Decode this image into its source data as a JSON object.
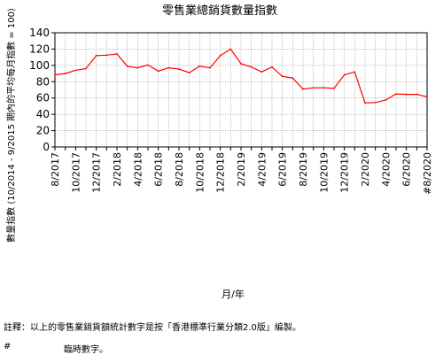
{
  "chart_data": {
    "type": "line",
    "title": "零售業總銷貨數量指數",
    "ylabel": "數量指數 (10/2014 - 9/2015 期內的平均每月指數 = 100)",
    "xlabel": "月/年",
    "ylim": [
      0,
      140
    ],
    "yticks": [
      0,
      20,
      40,
      60,
      80,
      100,
      120,
      140
    ],
    "grid": true,
    "line_color": "#ff0000",
    "x": [
      "8/2017",
      "9/2017",
      "10/2017",
      "11/2017",
      "12/2017",
      "1/2018",
      "2/2018",
      "3/2018",
      "4/2018",
      "5/2018",
      "6/2018",
      "7/2018",
      "8/2018",
      "9/2018",
      "10/2018",
      "11/2018",
      "12/2018",
      "1/2019",
      "2/2019",
      "3/2019",
      "4/2019",
      "5/2019",
      "6/2019",
      "7/2019",
      "8/2019",
      "9/2019",
      "10/2019",
      "11/2019",
      "12/2019",
      "1/2020",
      "2/2020",
      "3/2020",
      "4/2020",
      "5/2020",
      "6/2020",
      "7/2020",
      "8/2020"
    ],
    "tick_labels": [
      "8/2017",
      "10/2017",
      "12/2017",
      "2/2018",
      "4/2018",
      "6/2018",
      "8/2018",
      "10/2018",
      "12/2018",
      "2/2019",
      "4/2019",
      "6/2019",
      "8/2019",
      "10/2019",
      "12/2019",
      "2/2020",
      "4/2020",
      "6/2020",
      "#8/2020"
    ],
    "values": [
      88.5,
      90,
      94,
      96,
      112,
      112.5,
      114,
      99,
      97,
      100.5,
      93,
      97,
      95.5,
      91,
      99,
      97,
      112,
      120,
      102,
      98,
      92,
      98,
      86.5,
      84.5,
      71,
      72.5,
      72.5,
      72,
      88.5,
      92,
      54,
      54.5,
      57.5,
      65,
      64.5,
      64.5,
      61.5
    ]
  },
  "notes": {
    "remark": "註釋：以上的零售業銷貨額統計數字是按「香港標準行業分類2.0版」編製。",
    "hash_symbol": "#",
    "hash_text": "臨時數字。"
  }
}
